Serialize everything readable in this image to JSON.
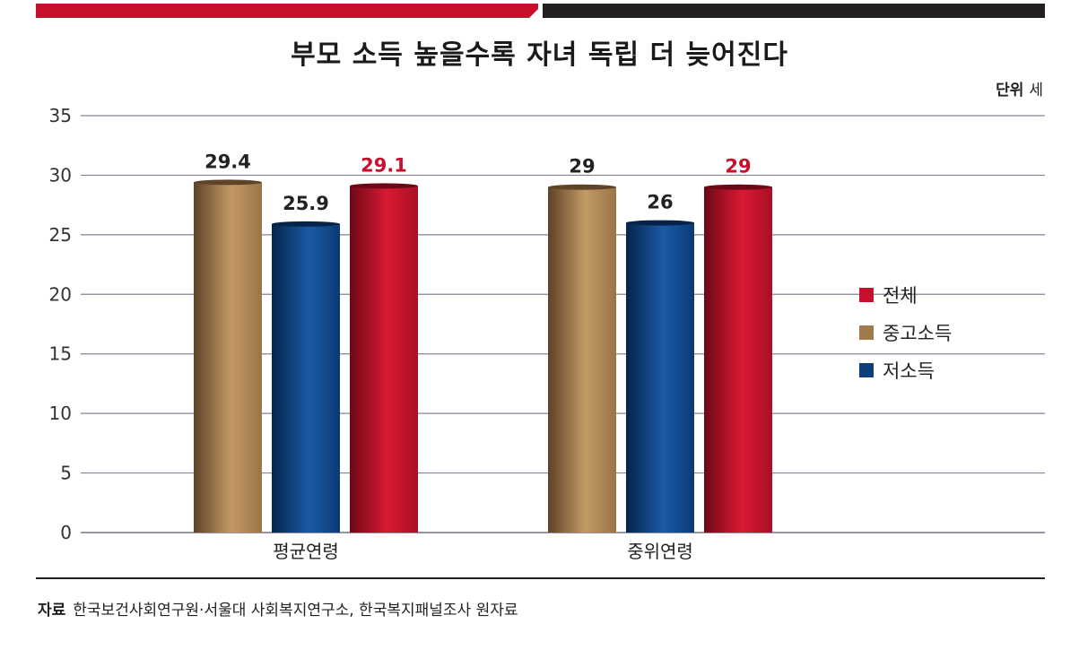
{
  "chart_data": {
    "type": "bar",
    "title": "부모 소득 높을수록 자녀 독립 더 늦어진다",
    "unit_label": "단위",
    "unit_value": "세",
    "categories": [
      "평균연령",
      "중위연령"
    ],
    "series": [
      {
        "name": "중고소득",
        "values": [
          29.4,
          29
        ],
        "labels": [
          "29.4",
          "29"
        ],
        "color": "#a07a4a"
      },
      {
        "name": "저소득",
        "values": [
          25.9,
          26
        ],
        "labels": [
          "25.9",
          "26"
        ],
        "color": "#0d3f7e"
      },
      {
        "name": "전체",
        "values": [
          29.1,
          29
        ],
        "labels": [
          "29.1",
          "29"
        ],
        "color": "#c8102e"
      }
    ],
    "legend_order": [
      "전체",
      "중고소득",
      "저소득"
    ],
    "ylim": [
      0,
      35
    ],
    "yticks": [
      "0",
      "5",
      "10",
      "15",
      "20",
      "25",
      "30",
      "35"
    ],
    "grid": true,
    "legend_position": "right"
  },
  "source": {
    "label": "자료",
    "text": "한국보건사회연구원·서울대 사회복지연구소, 한국복지패널조사 원자료"
  }
}
